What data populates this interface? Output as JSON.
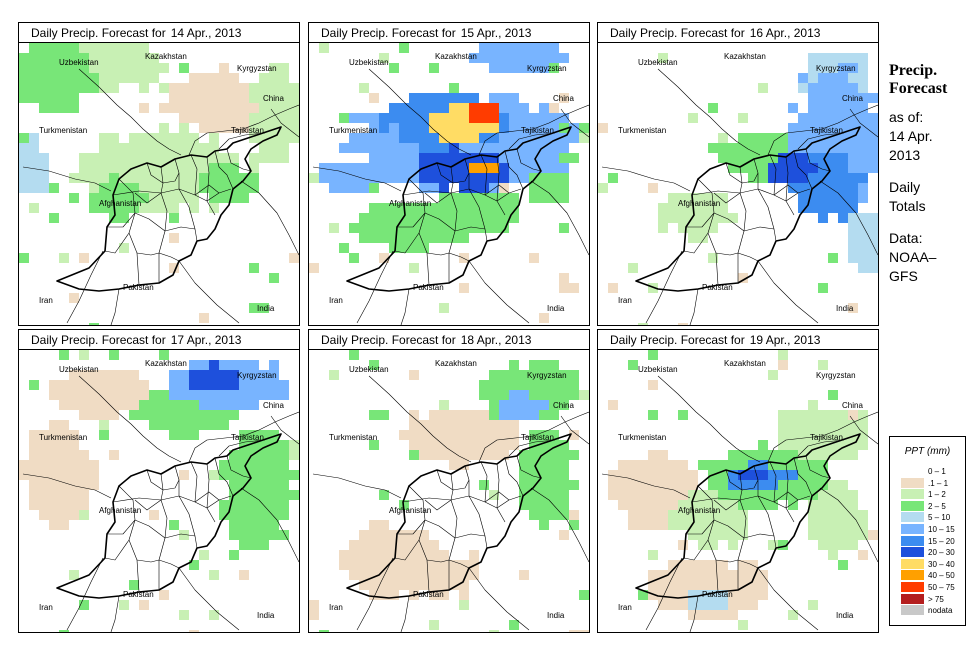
{
  "panels": [
    {
      "title_prefix": "Daily Precip. Forecast for",
      "date": "14 Apr., 2013"
    },
    {
      "title_prefix": "Daily Precip. Forecast for",
      "date": "15 Apr., 2013"
    },
    {
      "title_prefix": "Daily Precip. Forecast for",
      "date": "16 Apr., 2013"
    },
    {
      "title_prefix": "Daily Precip. Forecast for",
      "date": "17 Apr., 2013"
    },
    {
      "title_prefix": "Daily Precip. Forecast for",
      "date": "18 Apr., 2013"
    },
    {
      "title_prefix": "Daily Precip. Forecast for",
      "date": "19 Apr., 2013"
    }
  ],
  "map_labels": {
    "kazakhstan": "Kazakhstan",
    "uzbekistan": "Uzbekistan",
    "kyrgyzstan": "Kyrgyzstan",
    "china": "China",
    "turkmenistan": "Turkmenistan",
    "tajikistan": "Tajikistan",
    "afghanistan": "Afghanistan",
    "iran": "Iran",
    "pakistan": "Pakistan",
    "india": "India"
  },
  "sidebar": {
    "heading_line1": "Precip.",
    "heading_line2": "Forecast",
    "asof_line1": "as of:",
    "asof_line2": "14 Apr.",
    "asof_line3": "2013",
    "totals_line1": "Daily",
    "totals_line2": "Totals",
    "data_line1": "Data:",
    "data_line2": "NOAA–",
    "data_line3": "GFS"
  },
  "legend": {
    "title": "PPT (mm)",
    "items": [
      {
        "label": "0 – 1",
        "color": "#ffffff"
      },
      {
        "label": ".1 – 1",
        "color": "#f0dcc4"
      },
      {
        "label": "1 – 2",
        "color": "#c8f0b4"
      },
      {
        "label": "2 – 5",
        "color": "#78e678"
      },
      {
        "label": "5 – 10",
        "color": "#b4dcf0"
      },
      {
        "label": "10 – 15",
        "color": "#78b4ff"
      },
      {
        "label": "15 – 20",
        "color": "#3c8cf0"
      },
      {
        "label": "20 – 30",
        "color": "#1e50dc"
      },
      {
        "label": "30 – 40",
        "color": "#ffdc64"
      },
      {
        "label": "40 – 50",
        "color": "#ffa000"
      },
      {
        "label": "50 – 75",
        "color": "#ff3c00"
      },
      {
        "label": "> 75",
        "color": "#b41e1e"
      },
      {
        "label": "nodata",
        "color": "#c8c8c8"
      }
    ]
  }
}
